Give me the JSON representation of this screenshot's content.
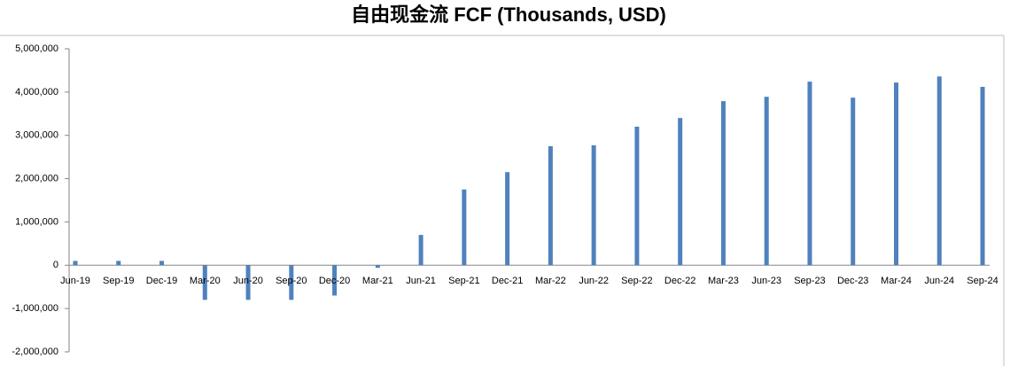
{
  "chart_data": {
    "type": "bar",
    "title": "自由现金流 FCF (Thousands, USD)",
    "categories": [
      "Jun-19",
      "Sep-19",
      "Dec-19",
      "Mar-20",
      "Jun-20",
      "Sep-20",
      "Dec-20",
      "Mar-21",
      "Jun-21",
      "Sep-21",
      "Dec-21",
      "Mar-22",
      "Jun-22",
      "Sep-22",
      "Dec-22",
      "Mar-23",
      "Jun-23",
      "Sep-23",
      "Dec-23",
      "Mar-24",
      "Jun-24",
      "Sep-24"
    ],
    "values": [
      100000,
      100000,
      100000,
      -800000,
      -800000,
      -800000,
      -700000,
      -60000,
      700000,
      1750000,
      2150000,
      2750000,
      2770000,
      3200000,
      3400000,
      3790000,
      3890000,
      4240000,
      3870000,
      4220000,
      4360000,
      4120000
    ],
    "color": "#4f81bd",
    "ylim": [
      -2000000,
      5000000
    ],
    "yticks": [
      {
        "value": -2000000,
        "label": "-2,000,000"
      },
      {
        "value": -1000000,
        "label": "-1,000,000"
      },
      0,
      {
        "value": 1000000,
        "label": "1,000,000"
      },
      {
        "value": 2000000,
        "label": "2,000,000"
      },
      {
        "value": 3000000,
        "label": "3,000,000"
      },
      {
        "value": 4000000,
        "label": "4,000,000"
      },
      {
        "value": 5000000,
        "label": "5,000,000"
      }
    ],
    "grid": false
  }
}
